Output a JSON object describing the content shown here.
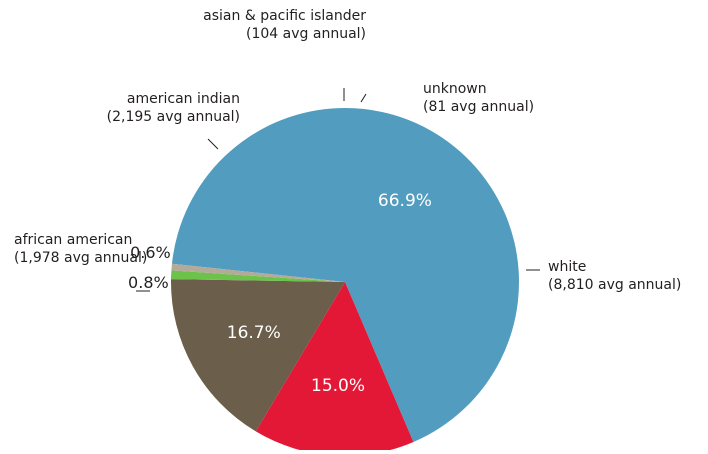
{
  "chart_data": {
    "type": "pie",
    "slices": [
      {
        "name": "white",
        "detail": "(8,810 avg annual)",
        "percent": 66.9,
        "percent_label": "66.9%",
        "avg_annual": 8810,
        "color": "#529dbf",
        "text_color": "#ffffff"
      },
      {
        "name": "african american",
        "detail": "(1,978 avg annual)",
        "percent": 15.0,
        "percent_label": "15.0%",
        "avg_annual": 1978,
        "color": "#e31837",
        "text_color": "#ffffff"
      },
      {
        "name": "american indian",
        "detail": "(2,195 avg annual)",
        "percent": 16.7,
        "percent_label": "16.7%",
        "avg_annual": 2195,
        "color": "#6b5e4a",
        "text_color": "#ffffff"
      },
      {
        "name": "asian & pacific islander",
        "detail": "(104 avg annual)",
        "percent": 0.8,
        "percent_label": "0.8%",
        "avg_annual": 104,
        "color": "#6cc24a",
        "text_color": "#231f20"
      },
      {
        "name": "unknown",
        "detail": "(81 avg annual)",
        "percent": 0.6,
        "percent_label": "0.6%",
        "avg_annual": 81,
        "color": "#b3aa99",
        "text_color": "#231f20"
      }
    ]
  }
}
